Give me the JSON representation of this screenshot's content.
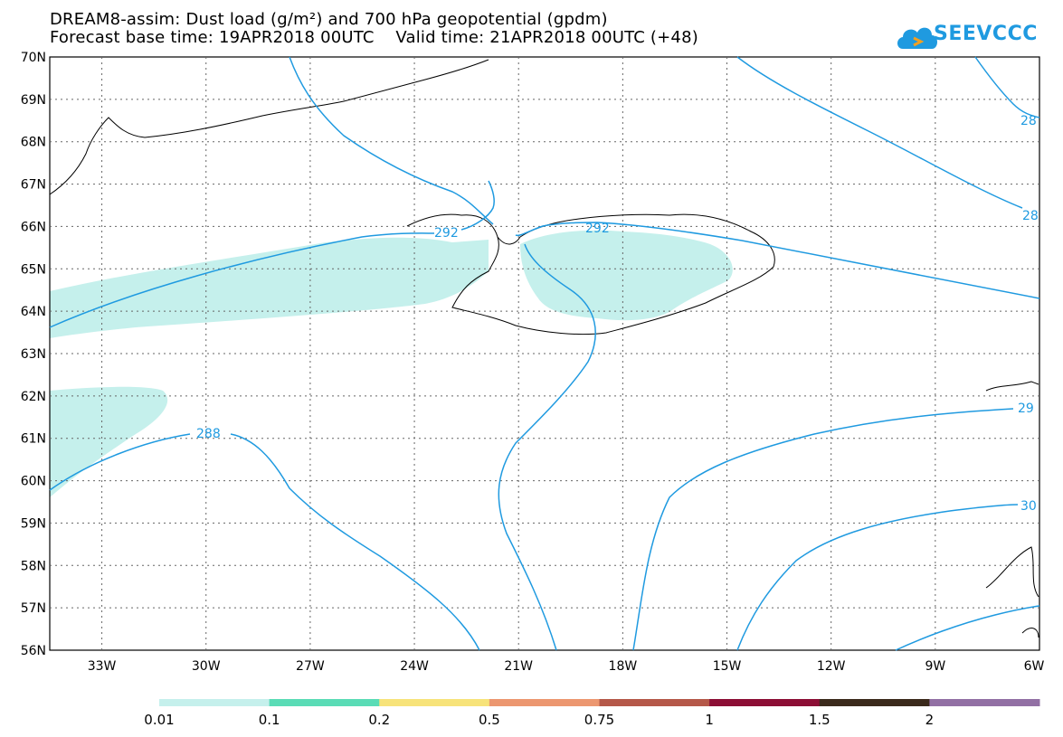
{
  "title": {
    "line1": "DREAM8-assim: Dust load (g/m²) and 700 hPa geopotential (gpdm)",
    "line2": "Forecast base time: 19APR2018 00UTC    Valid time: 21APR2018 00UTC (+48)"
  },
  "logo": {
    "text": "SEEVCCC",
    "icon": "cloud-icon",
    "color": "#1f9ae0"
  },
  "map": {
    "lat_range": [
      56,
      70
    ],
    "lon_range": [
      -34.5,
      -6
    ],
    "lat_labels": [
      "70N",
      "69N",
      "68N",
      "67N",
      "66N",
      "65N",
      "64N",
      "63N",
      "62N",
      "61N",
      "60N",
      "59N",
      "58N",
      "57N",
      "56N"
    ],
    "lon_labels": [
      "33W",
      "30W",
      "27W",
      "24W",
      "21W",
      "18W",
      "15W",
      "12W",
      "9W",
      "6W"
    ],
    "grid": "dotted",
    "contour_color": "#1f9ae0",
    "dust_color": "#c5f0ec",
    "contour_labels": [
      "292",
      "292",
      "288",
      "28",
      "28",
      "29",
      "30"
    ]
  },
  "colorbar": {
    "colors": [
      "#c5f0ec",
      "#5adcb6",
      "#f7e37a",
      "#ec9770",
      "#b55849",
      "#8c0e35",
      "#3b2a1c",
      "#9270a4"
    ],
    "labels": [
      "0.01",
      "0.1",
      "0.2",
      "0.5",
      "0.75",
      "1",
      "1.5",
      "2"
    ]
  }
}
